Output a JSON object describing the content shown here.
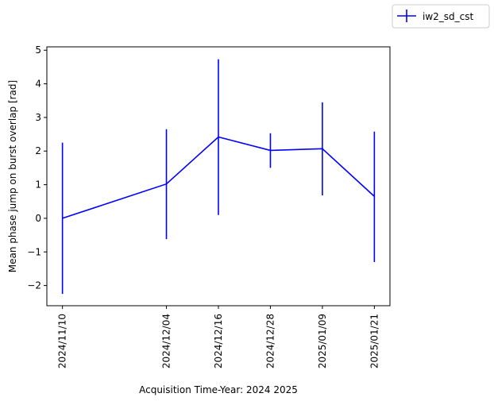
{
  "chart_data": {
    "type": "line",
    "title": "",
    "xlabel": "Acquisition Time-Year: 2024 2025",
    "ylabel": "Mean phase jump on burst overlap [rad]",
    "x": [
      "2024/11/10",
      "2024/12/04",
      "2024/12/16",
      "2024/12/28",
      "2025/01/09",
      "2025/01/21"
    ],
    "xticks": [
      "2024/11/10",
      "2024/12/04",
      "2024/12/16",
      "2024/12/28",
      "2025/01/09",
      "2025/01/21"
    ],
    "ylim": [
      -2.6,
      5.1
    ],
    "yticks": [
      -2,
      -1,
      0,
      1,
      2,
      3,
      4,
      5
    ],
    "grid": false,
    "legend": {
      "placement": "top-right-outside"
    },
    "series": [
      {
        "name": "iw2_sd_cst",
        "color": "#0000ff",
        "values": [
          0.0,
          1.02,
          2.42,
          2.02,
          2.07,
          0.65
        ],
        "error_low": [
          -2.25,
          -0.62,
          0.1,
          1.5,
          0.68,
          -1.3
        ],
        "error_high": [
          2.25,
          2.65,
          4.73,
          2.53,
          3.45,
          2.58
        ]
      }
    ]
  }
}
